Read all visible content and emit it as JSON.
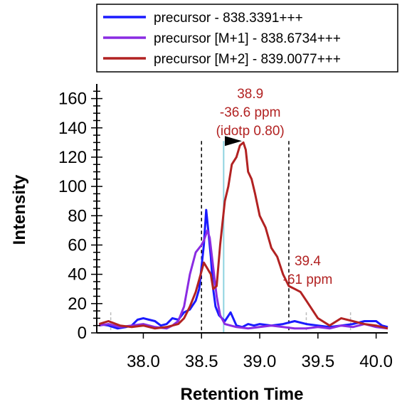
{
  "chart_data": {
    "type": "line",
    "xlabel": "Retention Time",
    "ylabel": "Intensity",
    "xlim": [
      37.6,
      40.1
    ],
    "ylim": [
      0,
      170
    ],
    "xticks": [
      38.0,
      38.5,
      39.0,
      39.5,
      40.0
    ],
    "xtick_labels": [
      "38.0",
      "38.5",
      "39.0",
      "39.5",
      "40.0"
    ],
    "yticks": [
      0,
      20,
      40,
      60,
      80,
      100,
      120,
      140,
      160
    ],
    "ytick_labels": [
      "0",
      "20",
      "40",
      "60",
      "80",
      "100",
      "120",
      "140",
      "160"
    ],
    "legend_position": "top",
    "series": [
      {
        "name": "precursor - 838.3391+++",
        "color": "#1a1aff",
        "x": [
          37.62,
          37.7,
          37.78,
          37.85,
          37.9,
          37.95,
          38.0,
          38.05,
          38.1,
          38.15,
          38.2,
          38.25,
          38.3,
          38.35,
          38.4,
          38.45,
          38.48,
          38.5,
          38.52,
          38.54,
          38.56,
          38.58,
          38.6,
          38.62,
          38.65,
          38.7,
          38.75,
          38.8,
          38.85,
          38.9,
          38.95,
          39.0,
          39.1,
          39.2,
          39.3,
          39.4,
          39.5,
          39.6,
          39.7,
          39.8,
          39.9,
          40.0,
          40.05,
          40.1
        ],
        "y": [
          6,
          5,
          3,
          4,
          5,
          9,
          10,
          9,
          8,
          5,
          6,
          10,
          9,
          14,
          16,
          22,
          30,
          45,
          60,
          84,
          68,
          52,
          30,
          18,
          12,
          8,
          14,
          5,
          4,
          6,
          5,
          6,
          5,
          6,
          8,
          6,
          5,
          4,
          5,
          6,
          8,
          8,
          5,
          4
        ]
      },
      {
        "name": "precursor [M+1] - 838.6734+++",
        "color": "#8a2be2",
        "x": [
          37.62,
          37.7,
          37.8,
          37.9,
          38.0,
          38.1,
          38.2,
          38.25,
          38.3,
          38.35,
          38.4,
          38.45,
          38.5,
          38.52,
          38.55,
          38.57,
          38.6,
          38.63,
          38.66,
          38.7,
          38.75,
          38.8,
          38.9,
          39.0,
          39.1,
          39.2,
          39.3,
          39.4,
          39.5,
          39.6,
          39.7,
          39.8,
          39.9,
          40.0,
          40.1
        ],
        "y": [
          5,
          6,
          4,
          5,
          6,
          4,
          3,
          5,
          8,
          18,
          40,
          55,
          60,
          63,
          70,
          65,
          45,
          25,
          12,
          6,
          5,
          4,
          3,
          4,
          5,
          4,
          3,
          3,
          4,
          3,
          5,
          4,
          6,
          4,
          3
        ]
      },
      {
        "name": "precursor [M+2] - 839.0077+++",
        "color": "#b22222",
        "x": [
          37.62,
          37.7,
          37.8,
          37.9,
          38.0,
          38.1,
          38.2,
          38.3,
          38.35,
          38.4,
          38.45,
          38.5,
          38.52,
          38.55,
          38.58,
          38.6,
          38.63,
          38.66,
          38.7,
          38.73,
          38.76,
          38.8,
          38.83,
          38.86,
          38.88,
          38.9,
          38.93,
          38.96,
          39.0,
          39.05,
          39.1,
          39.15,
          39.2,
          39.25,
          39.3,
          39.35,
          39.4,
          39.5,
          39.6,
          39.7,
          39.8,
          39.9,
          40.0,
          40.1
        ],
        "y": [
          6,
          8,
          5,
          4,
          5,
          3,
          4,
          6,
          10,
          18,
          28,
          42,
          48,
          44,
          40,
          30,
          32,
          60,
          90,
          100,
          115,
          120,
          128,
          130,
          125,
          110,
          105,
          95,
          80,
          72,
          58,
          52,
          40,
          32,
          30,
          28,
          22,
          10,
          5,
          10,
          8,
          6,
          5,
          3
        ]
      }
    ],
    "annotations": [
      {
        "lines": [
          "38.9",
          "-36.6 ppm",
          "(idotp 0.80)"
        ],
        "x": 38.9,
        "color": "#b22222"
      },
      {
        "lines": [
          "39.4",
          "-61 ppm"
        ],
        "x": 39.4,
        "color": "#b22222"
      }
    ],
    "boundaries": [
      38.5,
      39.25
    ],
    "apex_marker": 38.69,
    "peak_markers": [
      37.72,
      39.4,
      39.78
    ]
  }
}
